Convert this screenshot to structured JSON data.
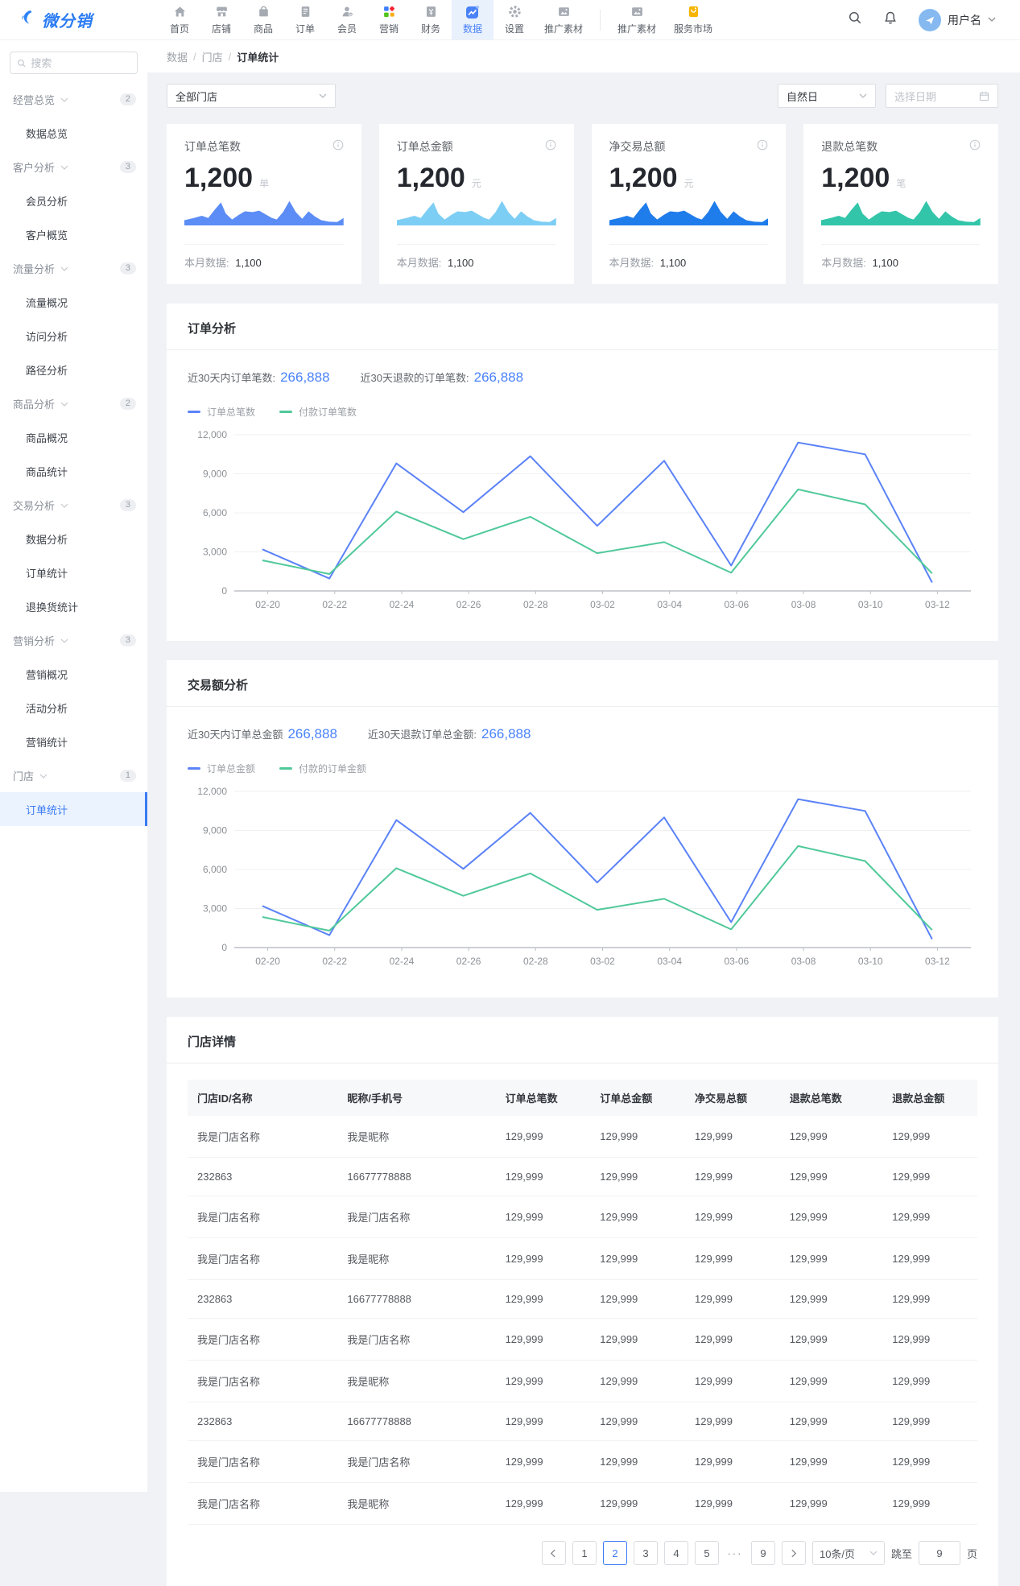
{
  "topbar": {
    "logo_text": "微分销",
    "nav": [
      {
        "label": "首页",
        "icon": "home-icon"
      },
      {
        "label": "店铺",
        "icon": "shop-icon"
      },
      {
        "label": "商品",
        "icon": "goods-icon"
      },
      {
        "label": "订单",
        "icon": "order-icon"
      },
      {
        "label": "会员",
        "icon": "member-icon"
      },
      {
        "label": "营销",
        "icon": "marketing-icon"
      },
      {
        "label": "财务",
        "icon": "finance-icon"
      },
      {
        "label": "数据",
        "icon": "data-icon",
        "active": true
      },
      {
        "label": "设置",
        "icon": "settings-icon"
      },
      {
        "label": "推广素材",
        "icon": "media-icon"
      },
      {
        "divider": true
      },
      {
        "label": "推广素材",
        "icon": "media-icon"
      },
      {
        "label": "服务市场",
        "icon": "market-icon"
      }
    ],
    "username": "用户名"
  },
  "sidebar": {
    "search_placeholder": "搜索",
    "groups": [
      {
        "label": "经营总览",
        "badge": "2",
        "items": [
          {
            "label": "数据总览"
          }
        ]
      },
      {
        "label": "客户分析",
        "badge": "3",
        "items": [
          {
            "label": "会员分析"
          },
          {
            "label": "客户概览"
          }
        ]
      },
      {
        "label": "流量分析",
        "badge": "3",
        "items": [
          {
            "label": "流量概况"
          },
          {
            "label": "访问分析"
          },
          {
            "label": "路径分析"
          }
        ]
      },
      {
        "label": "商品分析",
        "badge": "2",
        "items": [
          {
            "label": "商品概况"
          },
          {
            "label": "商品统计"
          }
        ]
      },
      {
        "label": "交易分析",
        "badge": "3",
        "items": [
          {
            "label": "数据分析"
          },
          {
            "label": "订单统计"
          },
          {
            "label": "退换货统计"
          }
        ]
      },
      {
        "label": "营销分析",
        "badge": "3",
        "items": [
          {
            "label": "营销概况"
          },
          {
            "label": "活动分析"
          },
          {
            "label": "营销统计"
          }
        ]
      },
      {
        "label": "门店",
        "badge": "1",
        "items": [
          {
            "label": "订单统计",
            "active": true
          }
        ]
      }
    ]
  },
  "breadcrumb": {
    "parts": [
      "数据",
      "门店"
    ],
    "separator": "/",
    "current": "订单统计"
  },
  "filters": {
    "store": "全部门店",
    "period": "自然日",
    "date_placeholder": "选择日期"
  },
  "stat_cards": {
    "sparkline": [
      [
        0,
        62
      ],
      [
        6,
        56
      ],
      [
        11,
        50
      ],
      [
        15,
        56
      ],
      [
        19,
        34
      ],
      [
        23,
        14
      ],
      [
        26,
        44
      ],
      [
        30,
        60
      ],
      [
        34,
        48
      ],
      [
        38,
        38
      ],
      [
        43,
        40
      ],
      [
        47,
        36
      ],
      [
        51,
        46
      ],
      [
        55,
        56
      ],
      [
        58,
        60
      ],
      [
        62,
        40
      ],
      [
        66,
        10
      ],
      [
        70,
        40
      ],
      [
        74,
        58
      ],
      [
        78,
        38
      ],
      [
        82,
        52
      ],
      [
        86,
        62
      ],
      [
        91,
        66
      ],
      [
        96,
        67
      ],
      [
        100,
        56
      ]
    ],
    "cards": [
      {
        "title": "订单总笔数",
        "value": "1,200",
        "unit": "单",
        "month_label": "本月数据:",
        "month_value": "1,100",
        "color": "#5C8DF6"
      },
      {
        "title": "订单总金额",
        "value": "1,200",
        "unit": "元",
        "month_label": "本月数据:",
        "month_value": "1,100",
        "color": "#7DCEF4"
      },
      {
        "title": "净交易总额",
        "value": "1,200",
        "unit": "元",
        "month_label": "本月数据:",
        "month_value": "1,100",
        "color": "#1F7CEB"
      },
      {
        "title": "退款总笔数",
        "value": "1,200",
        "unit": "笔",
        "month_label": "本月数据:",
        "month_value": "1,100",
        "color": "#32C5A9"
      }
    ]
  },
  "chart_data": [
    {
      "type": "line",
      "title": "订单分析",
      "stats": [
        {
          "label": "近30天内订单笔数:",
          "value": "266,888"
        },
        {
          "label": "近30天退款的订单笔数:",
          "value": "266,888"
        }
      ],
      "categories": [
        "02-20",
        "02-22",
        "02-24",
        "02-26",
        "02-28",
        "03-02",
        "03-04",
        "03-06",
        "03-08",
        "03-10",
        "03-12"
      ],
      "series": [
        {
          "name": "订单总笔数",
          "color": "#5B82F7",
          "values": [
            3200,
            950,
            9800,
            6050,
            10350,
            5000,
            10000,
            1950,
            11400,
            10500,
            650
          ]
        },
        {
          "name": "付款订单笔数",
          "color": "#50C99A",
          "values": [
            2350,
            1300,
            6100,
            3975,
            5700,
            2900,
            3750,
            1400,
            7800,
            6650,
            1350
          ]
        }
      ],
      "ylim": [
        0,
        12000
      ],
      "yticks": [
        "0",
        "3,000",
        "6,000",
        "9,000",
        "12,000"
      ],
      "grid": true,
      "legend_position": "top"
    },
    {
      "type": "line",
      "title": "交易额分析",
      "stats": [
        {
          "label": "近30天内订单总金额",
          "value": "266,888"
        },
        {
          "label": "近30天退款订单总金额:",
          "value": "266,888"
        }
      ],
      "categories": [
        "02-20",
        "02-22",
        "02-24",
        "02-26",
        "02-28",
        "03-02",
        "03-04",
        "03-06",
        "03-08",
        "03-10",
        "03-12"
      ],
      "series": [
        {
          "name": "订单总金额",
          "color": "#5B82F7",
          "values": [
            3200,
            950,
            9800,
            6050,
            10350,
            5000,
            10000,
            1950,
            11400,
            10500,
            650
          ]
        },
        {
          "name": "付款的订单金额",
          "color": "#50C99A",
          "values": [
            2350,
            1300,
            6100,
            3975,
            5700,
            2900,
            3750,
            1400,
            7800,
            6650,
            1350
          ]
        }
      ],
      "ylim": [
        0,
        12000
      ],
      "yticks": [
        "0",
        "3,000",
        "6,000",
        "9,000",
        "12,000"
      ],
      "grid": true,
      "legend_position": "top"
    }
  ],
  "store_table": {
    "title": "门店详情",
    "columns": [
      "门店ID/名称",
      "昵称/手机号",
      "订单总笔数",
      "订单总金额",
      "净交易总额",
      "退款总笔数",
      "退款总金额"
    ],
    "rows": [
      [
        "我是门店名称",
        "我是昵称",
        "129,999",
        "129,999",
        "129,999",
        "129,999",
        "129,999"
      ],
      [
        "232863",
        "16677778888",
        "129,999",
        "129,999",
        "129,999",
        "129,999",
        "129,999"
      ],
      [
        "我是门店名称",
        "我是门店名称",
        "129,999",
        "129,999",
        "129,999",
        "129,999",
        "129,999"
      ],
      [
        "我是门店名称",
        "我是昵称",
        "129,999",
        "129,999",
        "129,999",
        "129,999",
        "129,999"
      ],
      [
        "232863",
        "16677778888",
        "129,999",
        "129,999",
        "129,999",
        "129,999",
        "129,999"
      ],
      [
        "我是门店名称",
        "我是门店名称",
        "129,999",
        "129,999",
        "129,999",
        "129,999",
        "129,999"
      ],
      [
        "我是门店名称",
        "我是昵称",
        "129,999",
        "129,999",
        "129,999",
        "129,999",
        "129,999"
      ],
      [
        "232863",
        "16677778888",
        "129,999",
        "129,999",
        "129,999",
        "129,999",
        "129,999"
      ],
      [
        "我是门店名称",
        "我是门店名称",
        "129,999",
        "129,999",
        "129,999",
        "129,999",
        "129,999"
      ],
      [
        "我是门店名称",
        "我是昵称",
        "129,999",
        "129,999",
        "129,999",
        "129,999",
        "129,999"
      ]
    ]
  },
  "pagination": {
    "pages": [
      "1",
      "2",
      "3",
      "4",
      "5",
      "···",
      "9"
    ],
    "active": "2",
    "page_size": "10条/页",
    "jump_label": "跳至",
    "jump_value": "9",
    "jump_suffix": "页"
  },
  "colors": {
    "primary": "#3B7BF6",
    "chart_blue": "#5B82F7",
    "chart_green": "#50C99A",
    "bg": "#F0F2F5"
  }
}
